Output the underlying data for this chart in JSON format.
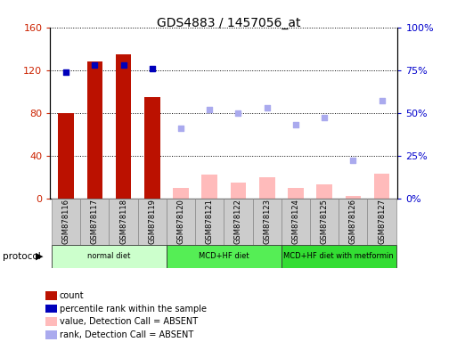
{
  "title": "GDS4883 / 1457056_at",
  "samples": [
    "GSM878116",
    "GSM878117",
    "GSM878118",
    "GSM878119",
    "GSM878120",
    "GSM878121",
    "GSM878122",
    "GSM878123",
    "GSM878124",
    "GSM878125",
    "GSM878126",
    "GSM878127"
  ],
  "count_bars": [
    80,
    128,
    135,
    95,
    null,
    null,
    null,
    null,
    null,
    null,
    null,
    null
  ],
  "value_absent_bars": [
    null,
    null,
    null,
    null,
    10,
    22,
    15,
    20,
    10,
    13,
    2,
    23
  ],
  "percentile_dark_dots": [
    74,
    78,
    78,
    76,
    null,
    null,
    null,
    null,
    null,
    null,
    null,
    null
  ],
  "rank_absent_dots": [
    null,
    null,
    null,
    null,
    41,
    52,
    50,
    53,
    43,
    47,
    22,
    57
  ],
  "ylim_left": [
    0,
    160
  ],
  "ylim_right": [
    0,
    100
  ],
  "yticks_left": [
    0,
    40,
    80,
    120,
    160
  ],
  "yticks_right": [
    0,
    25,
    50,
    75,
    100
  ],
  "ytick_labels_left": [
    "0",
    "40",
    "80",
    "120",
    "160"
  ],
  "ytick_labels_right": [
    "0%",
    "25%",
    "50%",
    "75%",
    "100%"
  ],
  "group_defs": [
    {
      "label": "normal diet",
      "start": 0,
      "end": 3,
      "color": "#ccffcc"
    },
    {
      "label": "MCD+HF diet",
      "start": 4,
      "end": 7,
      "color": "#55ee55"
    },
    {
      "label": "MCD+HF diet with metformin",
      "start": 8,
      "end": 11,
      "color": "#33dd33"
    }
  ],
  "bar_width": 0.55,
  "color_count": "#bb1100",
  "color_value_absent": "#ffbbbb",
  "color_percentile_dark": "#0000bb",
  "color_rank_absent": "#aaaaee",
  "background_color": "#ffffff",
  "grid_color": "#000000",
  "ylabel_left_color": "#cc2200",
  "ylabel_right_color": "#0000cc",
  "sample_box_color": "#cccccc",
  "legend_items": [
    "count",
    "percentile rank within the sample",
    "value, Detection Call = ABSENT",
    "rank, Detection Call = ABSENT"
  ],
  "legend_colors": [
    "#bb1100",
    "#0000bb",
    "#ffbbbb",
    "#aaaaee"
  ]
}
